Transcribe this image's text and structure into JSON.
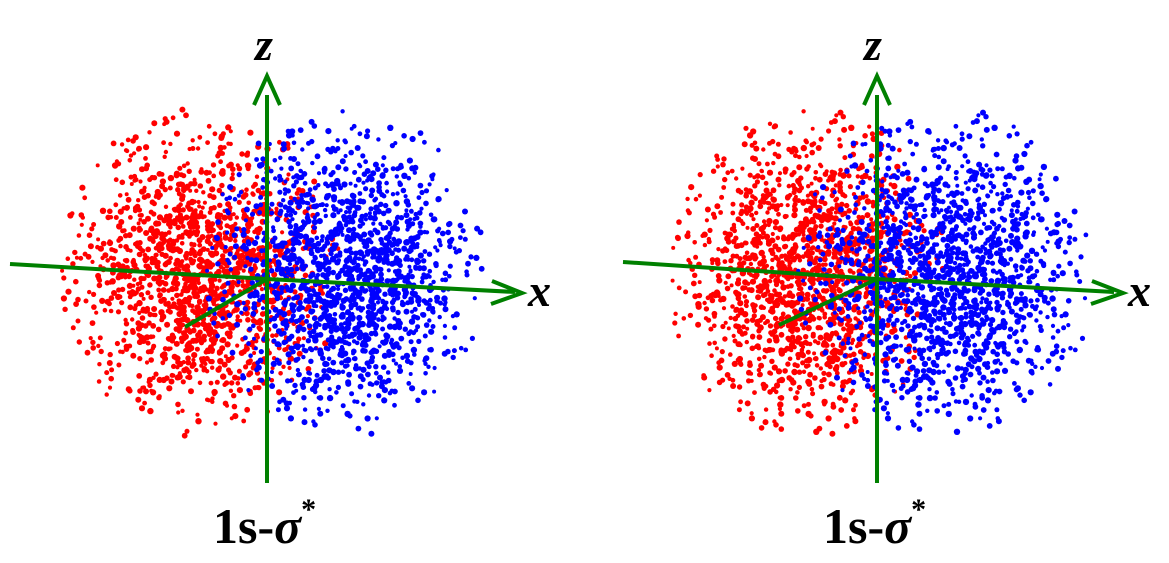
{
  "panels": [
    {
      "axis_z_label": "z",
      "axis_x_label": "x",
      "caption_main": "1s-",
      "caption_symbol": "σ",
      "caption_superscript": "*"
    },
    {
      "axis_z_label": "z",
      "axis_x_label": "x",
      "caption_main": "1s-",
      "caption_symbol": "σ",
      "caption_superscript": "*"
    }
  ],
  "colors": {
    "lobe_positive": "#ff0000",
    "lobe_negative": "#0000ff",
    "axes": "#008000",
    "text": "#000000",
    "background": "#ffffff"
  }
}
